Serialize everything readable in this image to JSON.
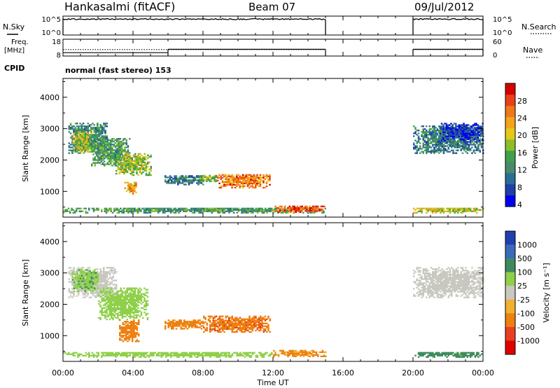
{
  "header": {
    "station": "Hankasalmi (fitACF)",
    "beam": "Beam 07",
    "date": "09/Jul/2012"
  },
  "nsky_panel": {
    "left_label": "N.Sky",
    "left_ticks": [
      "10^5",
      "10^0"
    ],
    "right_ticks": [
      "10^5",
      "10^0"
    ],
    "right_label": "N.Search"
  },
  "freq_panel": {
    "left_label_top": "Freq.",
    "left_label_unit": "[MHz]",
    "left_ticks": [
      "18",
      "8"
    ],
    "right_ticks": [
      "60",
      "0"
    ],
    "right_label": "Nave"
  },
  "cpid": {
    "label": "CPID",
    "value": "normal (fast stereo) 153"
  },
  "x_axis": {
    "ticks": [
      "00:00",
      "04:00",
      "08:00",
      "12:00",
      "16:00",
      "20:00",
      "00:00"
    ],
    "label": "Time UT"
  },
  "power_panel": {
    "ylabel": "Slant Range [km]",
    "yticks": [
      "4000",
      "3000",
      "2000",
      "1000"
    ],
    "colorbar_label": "Power [dB]",
    "colorbar_ticks": [
      "28",
      "24",
      "20",
      "16",
      "12",
      "8",
      "4"
    ],
    "colors": [
      "#0000ee",
      "#1f3ea8",
      "#2a6e96",
      "#4a8a6a",
      "#3fa24a",
      "#8cbe2a",
      "#e6c81a",
      "#f2a51a",
      "#f07818",
      "#e84018",
      "#d40000"
    ]
  },
  "velocity_panel": {
    "ylabel": "Slant Range [km]",
    "yticks": [
      "4000",
      "3000",
      "2000",
      "1000"
    ],
    "colorbar_label": "Velocity [m s⁻¹]",
    "colorbar_ticks": [
      "1000",
      "500",
      "100",
      "25",
      "-25",
      "-100",
      "-500",
      "-1000"
    ],
    "colors": [
      "#2040b0",
      "#3a6bbb",
      "#3d8a5c",
      "#8fd04a",
      "#c8c8c0",
      "#f0b030",
      "#ee8010",
      "#e84020",
      "#e00000"
    ]
  },
  "chart_data": {
    "type": "heatmap",
    "x_unit": "hours UT",
    "x_range": [
      0,
      24
    ],
    "y_range_km": [
      180,
      4600
    ],
    "data_gaps_ut": [
      [
        15.0,
        20.0
      ]
    ],
    "nsky_level_log10": 4.2,
    "freq_mhz_segments": [
      {
        "start": 0.0,
        "end": 6.0,
        "freq": 10.0
      },
      {
        "start": 6.0,
        "end": 15.0,
        "freq": 12.0
      },
      {
        "start": 20.0,
        "end": 24.0,
        "freq": 12.0
      }
    ],
    "nave_dotted": 23,
    "power_blobs": [
      {
        "t0": 0.3,
        "t1": 2.5,
        "r0": 2200,
        "r1": 3150,
        "db": 10
      },
      {
        "t0": 0.5,
        "t1": 1.6,
        "r0": 2200,
        "r1": 2900,
        "db": 17
      },
      {
        "t0": 1.6,
        "t1": 3.8,
        "r0": 1800,
        "r1": 2700,
        "db": 12
      },
      {
        "t0": 3.0,
        "t1": 5.0,
        "r0": 1500,
        "r1": 2200,
        "db": 16
      },
      {
        "t0": 3.5,
        "t1": 4.2,
        "r0": 900,
        "r1": 1300,
        "db": 22
      },
      {
        "t0": 5.8,
        "t1": 8.0,
        "r0": 1200,
        "r1": 1500,
        "db": 9
      },
      {
        "t0": 7.8,
        "t1": 8.8,
        "r0": 1300,
        "r1": 1500,
        "db": 15
      },
      {
        "t0": 8.8,
        "t1": 11.8,
        "r0": 1100,
        "r1": 1550,
        "db": 24
      },
      {
        "t0": 0.0,
        "t1": 15.0,
        "r0": 300,
        "r1": 480,
        "db": 12
      },
      {
        "t0": 12.0,
        "t1": 15.0,
        "r0": 320,
        "r1": 520,
        "db": 27
      },
      {
        "t0": 20.0,
        "t1": 24.0,
        "r0": 2200,
        "r1": 3100,
        "db": 9
      },
      {
        "t0": 21.5,
        "t1": 24.0,
        "r0": 2600,
        "r1": 3150,
        "db": 4
      },
      {
        "t0": 20.0,
        "t1": 24.0,
        "r0": 300,
        "r1": 480,
        "db": 18
      }
    ],
    "velocity_blobs": [
      {
        "t0": 0.3,
        "t1": 3.0,
        "r0": 2200,
        "r1": 3150,
        "v": 0
      },
      {
        "t0": 0.5,
        "t1": 2.0,
        "r0": 2400,
        "r1": 3100,
        "v": 80
      },
      {
        "t0": 2.0,
        "t1": 4.8,
        "r0": 1500,
        "r1": 2500,
        "v": 60
      },
      {
        "t0": 3.2,
        "t1": 4.3,
        "r0": 800,
        "r1": 1500,
        "v": -300
      },
      {
        "t0": 5.8,
        "t1": 8.0,
        "r0": 1200,
        "r1": 1500,
        "v": -150
      },
      {
        "t0": 8.0,
        "t1": 11.8,
        "r0": 1100,
        "r1": 1600,
        "v": -400
      },
      {
        "t0": 0.0,
        "t1": 12.0,
        "r0": 300,
        "r1": 480,
        "v": 60
      },
      {
        "t0": 12.0,
        "t1": 15.0,
        "r0": 320,
        "r1": 520,
        "v": -120
      },
      {
        "t0": 20.0,
        "t1": 24.0,
        "r0": 2200,
        "r1": 3150,
        "v": 0
      },
      {
        "t0": 20.0,
        "t1": 24.0,
        "r0": 300,
        "r1": 480,
        "v": 150
      }
    ]
  }
}
